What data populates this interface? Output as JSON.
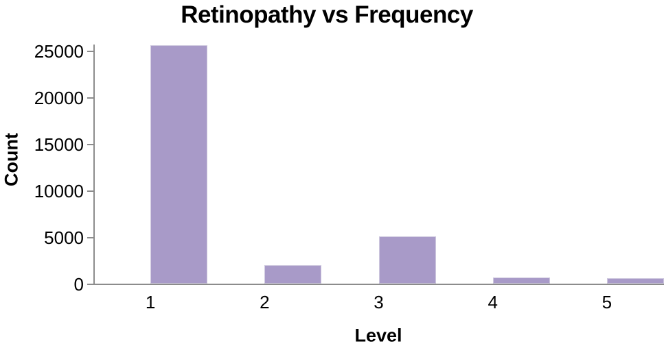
{
  "chart_data": {
    "type": "bar",
    "title": "Retinopathy vs Frequency",
    "xlabel": "Level",
    "ylabel": "Count",
    "categories": [
      "1",
      "2",
      "3",
      "4",
      "5"
    ],
    "values": [
      25600,
      2000,
      5100,
      650,
      600
    ],
    "yticks": [
      0,
      5000,
      10000,
      15000,
      20000,
      25000
    ],
    "ylim": [
      0,
      25000
    ],
    "grid": false,
    "legend": false,
    "bar_color": "#A89AC8",
    "bar_border_color": "#CFC9DF",
    "axis_color": "#8C8C8C",
    "text_color": "#000000"
  }
}
